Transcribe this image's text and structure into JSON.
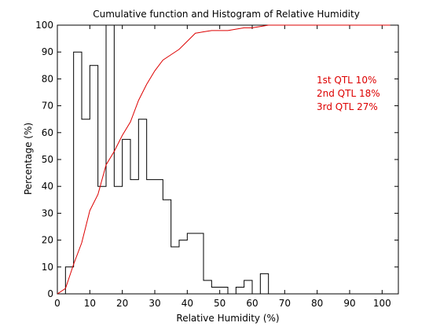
{
  "chart_data": {
    "type": "line",
    "title": "Cumulative function and Histogram of Relative Humidity",
    "xlabel": "Relative Humidity (%)",
    "ylabel": "Percentage (%)",
    "xlim": [
      0,
      105
    ],
    "ylim": [
      0,
      100
    ],
    "xticks": [
      0,
      10,
      20,
      30,
      40,
      50,
      60,
      70,
      80,
      90,
      100
    ],
    "yticks": [
      0,
      10,
      20,
      30,
      40,
      50,
      60,
      70,
      80,
      90,
      100
    ],
    "grid": false,
    "series": [
      {
        "kind": "stairs",
        "color": "#000000",
        "edges": [
          0,
          2.5,
          5,
          7.5,
          10,
          12.5,
          15,
          17.5,
          20,
          22.5,
          25,
          27.5,
          30,
          32.5,
          35,
          37.5,
          40,
          42.5,
          45,
          47.5,
          50,
          52.5,
          55,
          57.5,
          60,
          62.5,
          65,
          67.5
        ],
        "values": [
          0,
          10,
          90,
          65,
          85,
          40,
          100,
          40,
          57.5,
          42.5,
          65,
          42.5,
          42.5,
          35,
          17.5,
          20,
          22.5,
          22.5,
          5,
          2.5,
          2.5,
          0,
          2.5,
          5,
          0,
          7.5,
          0
        ]
      },
      {
        "kind": "line",
        "color": "#dd0000",
        "x": [
          0,
          2.5,
          5,
          7.5,
          10,
          12.5,
          15,
          17.5,
          20,
          22.5,
          25,
          27.5,
          30,
          32.5,
          35,
          37.5,
          40,
          42.5,
          45,
          47.5,
          50,
          52.5,
          55,
          57.5,
          60,
          62.5,
          65,
          67.5,
          70,
          80,
          90,
          100,
          102.5
        ],
        "y": [
          0,
          2,
          11,
          19,
          31,
          37,
          48,
          53,
          59,
          64,
          72,
          78,
          83,
          87,
          89,
          91,
          94,
          97,
          97.5,
          98,
          98,
          98,
          98.5,
          99,
          99,
          99.5,
          100,
          100,
          100,
          100,
          100,
          100,
          100
        ]
      }
    ],
    "annotations": [
      "1st QTL  10%",
      "2nd QTL  18%",
      "3rd QTL  27%"
    ],
    "annotation_color": "#dd0000"
  }
}
